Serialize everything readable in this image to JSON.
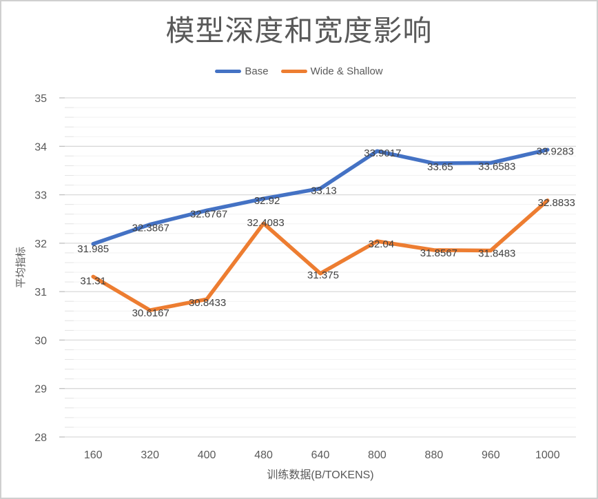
{
  "chart_data": {
    "type": "line",
    "title": "模型深度和宽度影响",
    "xlabel": "训练数据(B/TOKENS)",
    "ylabel": "平均指标",
    "categories": [
      "160",
      "320",
      "400",
      "480",
      "640",
      "800",
      "880",
      "960",
      "1000"
    ],
    "series": [
      {
        "name": "Base",
        "color": "#4472C4",
        "values": [
          31.985,
          32.3867,
          32.6767,
          32.92,
          33.13,
          33.9017,
          33.65,
          33.6583,
          33.9283
        ],
        "labels": [
          "31.985",
          "32.3867",
          "32.6767",
          "32.92",
          "33.13",
          "33.9017",
          "33.65",
          "33.6583",
          "33.9283"
        ]
      },
      {
        "name": "Wide & Shallow",
        "color": "#ED7D31",
        "values": [
          31.31,
          30.6167,
          30.8433,
          32.4083,
          31.375,
          32.04,
          31.8567,
          31.8483,
          32.8833
        ],
        "labels": [
          "31.31",
          "30.6167",
          "30.8433",
          "32.4083",
          "31.375",
          "32.04",
          "31.8567",
          "31.8483",
          "32.8833"
        ]
      }
    ],
    "y_axis": {
      "min": 28,
      "max": 35,
      "major_unit": 1,
      "minor_unit": 0.2,
      "ticks": [
        "35",
        "34",
        "33",
        "32",
        "31",
        "30",
        "29",
        "28"
      ]
    },
    "grid": {
      "major_on": true,
      "minor_on": true,
      "major_color": "#D9D9D9",
      "minor_color": "#F2F2F2",
      "tick_color": "#BFBFBF"
    },
    "legend_position": "top",
    "colors": {
      "title_text": "#595959",
      "axis_text": "#595959",
      "data_label_text": "#404040"
    }
  }
}
